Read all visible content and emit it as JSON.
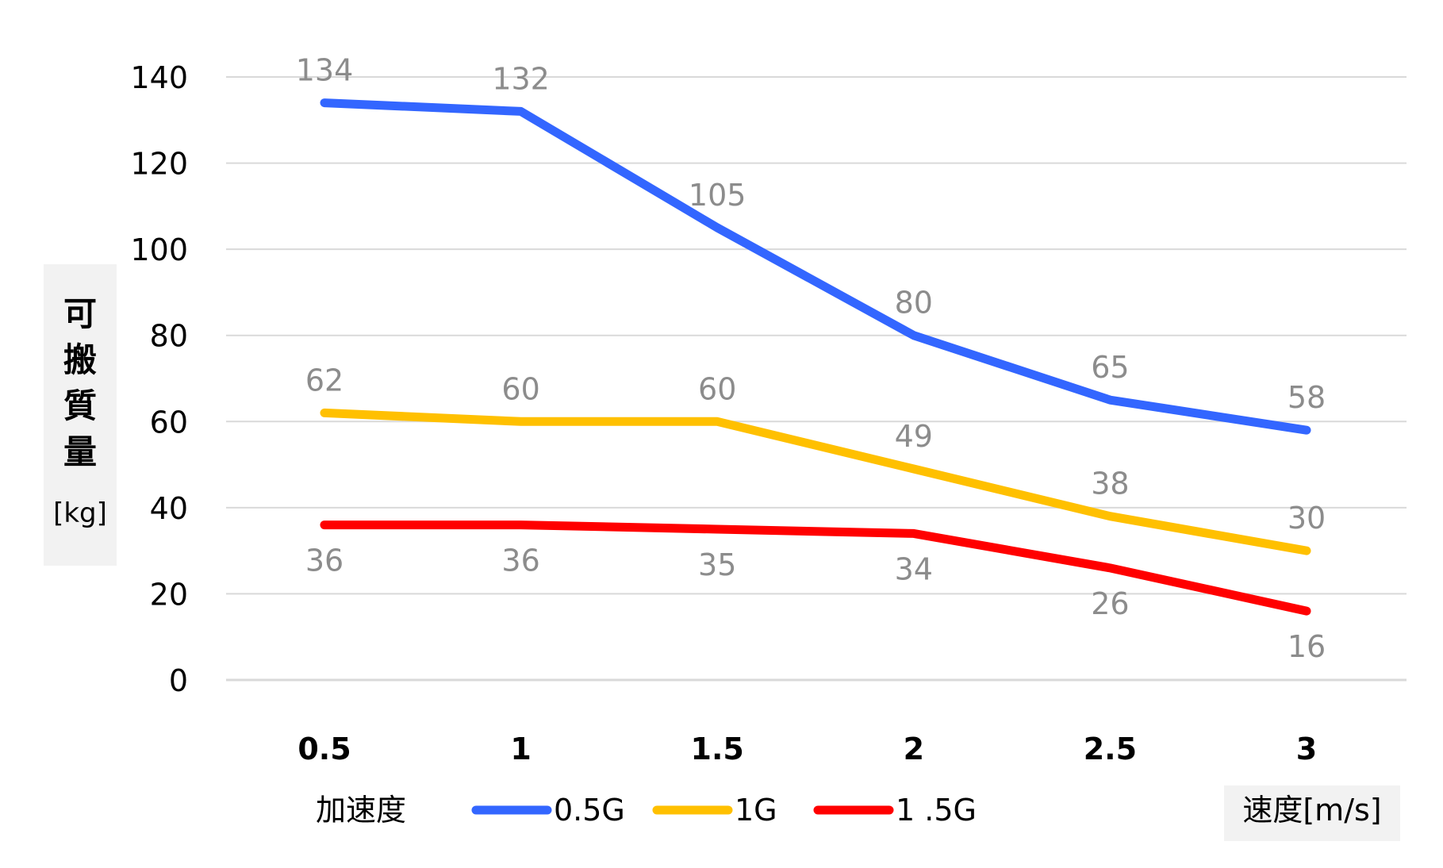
{
  "chart_data": {
    "type": "line",
    "title": "",
    "x": [
      "0.5",
      "1",
      "1.5",
      "2",
      "2.5",
      "3"
    ],
    "ylim": [
      0,
      140
    ],
    "yticks": [
      0,
      20,
      40,
      60,
      80,
      100,
      120,
      140
    ],
    "ylabel": "可搬質量",
    "ylabel_unit": "[kg]",
    "xlabel": "速度[m/s]",
    "grid": true,
    "legend_title": "加速度",
    "legend_position": "bottom",
    "data_labels": true,
    "series": [
      {
        "name": "0.5G",
        "color": "#3366ff",
        "values": [
          134,
          132,
          105,
          80,
          65,
          58
        ]
      },
      {
        "name": "1G",
        "color": "#ffc000",
        "values": [
          62,
          60,
          60,
          49,
          38,
          30
        ]
      },
      {
        "name": "1 .5G",
        "color": "#ff0000",
        "values": [
          36,
          36,
          35,
          34,
          26,
          16
        ]
      }
    ],
    "colors": {
      "grid": "#d9d9d9",
      "tick_label": "#000000",
      "data_label": "#8c8c8c",
      "axis_title_box": "#f2f2f2"
    }
  }
}
